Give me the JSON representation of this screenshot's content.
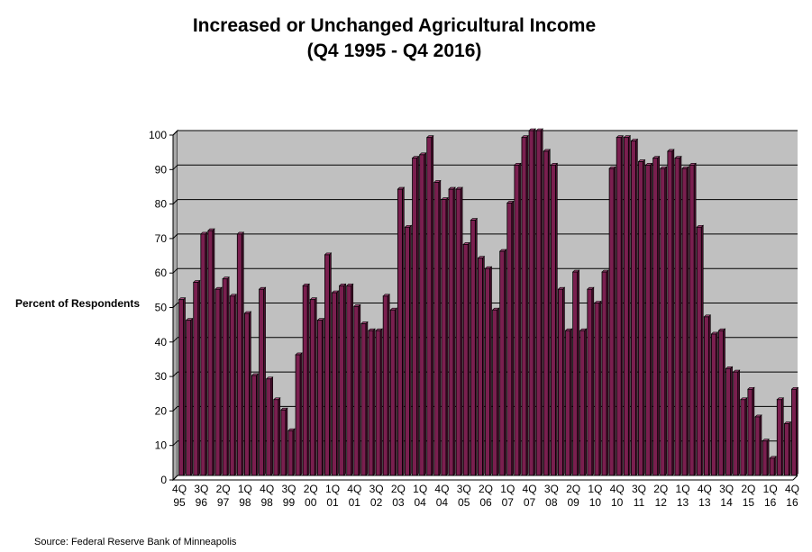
{
  "title": "Increased or Unchanged Agricultural Income",
  "subtitle": "(Q4 1995 - Q4 2016)",
  "ylabel": "Percent of Respondents",
  "source": "Source: Federal Reserve Bank of Minneapolis",
  "chart_data": {
    "type": "bar",
    "title": "Increased or Unchanged Agricultural Income (Q4 1995 - Q4 2016)",
    "ylabel": "Percent of Respondents",
    "xlabel": "",
    "ylim": [
      0,
      100
    ],
    "yticks": [
      0,
      10,
      20,
      30,
      40,
      50,
      60,
      70,
      80,
      90,
      100
    ],
    "grid": true,
    "bar_color": "#7a1f4f",
    "plot_background": "#c0c0c0",
    "x_tick_labels": [
      {
        "q": "4Q",
        "y": "95"
      },
      {
        "q": "3Q",
        "y": "96"
      },
      {
        "q": "2Q",
        "y": "97"
      },
      {
        "q": "1Q",
        "y": "98"
      },
      {
        "q": "4Q",
        "y": "98"
      },
      {
        "q": "3Q",
        "y": "99"
      },
      {
        "q": "2Q",
        "y": "00"
      },
      {
        "q": "1Q",
        "y": "01"
      },
      {
        "q": "4Q",
        "y": "01"
      },
      {
        "q": "3Q",
        "y": "02"
      },
      {
        "q": "2Q",
        "y": "03"
      },
      {
        "q": "1Q",
        "y": "04"
      },
      {
        "q": "4Q",
        "y": "04"
      },
      {
        "q": "3Q",
        "y": "05"
      },
      {
        "q": "2Q",
        "y": "06"
      },
      {
        "q": "1Q",
        "y": "07"
      },
      {
        "q": "4Q",
        "y": "07"
      },
      {
        "q": "3Q",
        "y": "08"
      },
      {
        "q": "2Q",
        "y": "09"
      },
      {
        "q": "1Q",
        "y": "10"
      },
      {
        "q": "4Q",
        "y": "10"
      },
      {
        "q": "3Q",
        "y": "11"
      },
      {
        "q": "2Q",
        "y": "12"
      },
      {
        "q": "1Q",
        "y": "13"
      },
      {
        "q": "4Q",
        "y": "13"
      },
      {
        "q": "3Q",
        "y": "14"
      },
      {
        "q": "2Q",
        "y": "15"
      },
      {
        "q": "1Q",
        "y": "16"
      },
      {
        "q": "4Q",
        "y": "16"
      }
    ],
    "series": [
      {
        "values": [
          51,
          45,
          56,
          70,
          71,
          54,
          57,
          52,
          70,
          47,
          29,
          54,
          28,
          22,
          19,
          13,
          35,
          55,
          51,
          45,
          64,
          53,
          55,
          55,
          49,
          44,
          42,
          42,
          52,
          48,
          83,
          72,
          92,
          93,
          98,
          85,
          80,
          83,
          83,
          67,
          74,
          63,
          60,
          48,
          65,
          79,
          90,
          98,
          100,
          100,
          94,
          90,
          54,
          42,
          59,
          42,
          54,
          50,
          59,
          89,
          98,
          98,
          97,
          91,
          90,
          92,
          89,
          94,
          92,
          89,
          90,
          72,
          46,
          41,
          42,
          31,
          30,
          22,
          25,
          17,
          10,
          5,
          22,
          15,
          25
        ]
      }
    ]
  }
}
